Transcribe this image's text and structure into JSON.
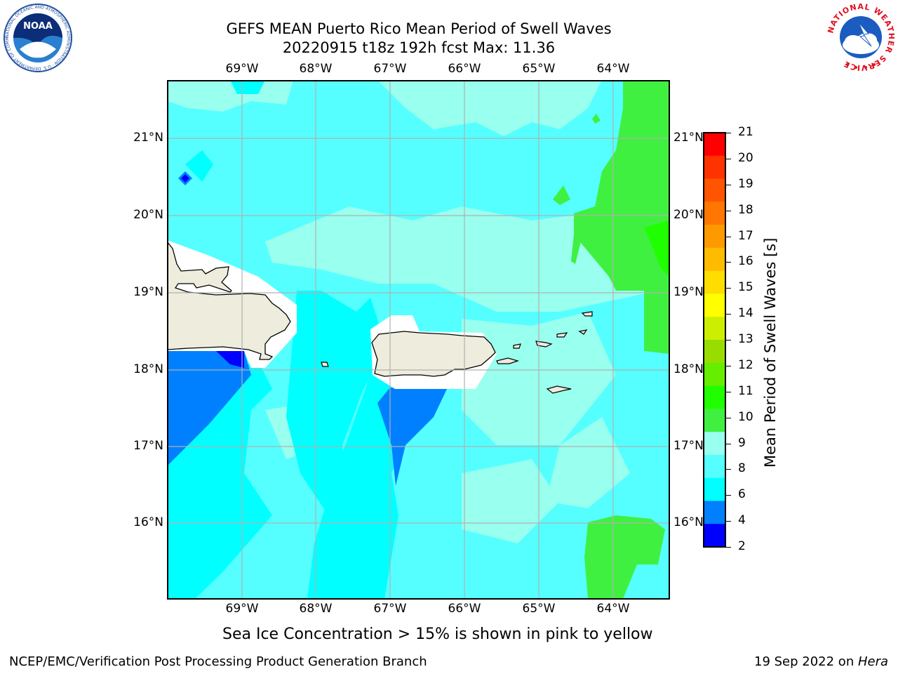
{
  "title": {
    "line1": "GEFS MEAN Puerto Rico Mean Period of Swell Waves",
    "line2": "20220915 t18z 192h fcst   Max: 11.36"
  },
  "map": {
    "lon_labels": [
      "69°W",
      "68°W",
      "67°W",
      "66°W",
      "65°W",
      "64°W"
    ],
    "lat_labels": [
      "21°N",
      "20°N",
      "19°N",
      "18°N",
      "17°N",
      "16°N"
    ],
    "colors": {
      "land": "#eeecdc",
      "shadow": "#ffffff",
      "c2": "#0000ff",
      "c4": "#0080ff",
      "c6": "#00ffff",
      "c8": "#55ffff",
      "c9": "#99ffee",
      "c10": "#40f040",
      "c11": "#20ff00",
      "grid": "#b0b0b0"
    }
  },
  "colorbar": {
    "title": "Mean Period of Swell Waves [s]",
    "levels": [
      "21",
      "20",
      "19",
      "18",
      "17",
      "16",
      "15",
      "14",
      "13",
      "12",
      "11",
      "10",
      "9",
      "8",
      "6",
      "4",
      "2"
    ],
    "colors": [
      "#ff0000",
      "#ff3300",
      "#ff5500",
      "#ff7700",
      "#ff9900",
      "#ffbb00",
      "#ffdd00",
      "#ffff00",
      "#ccee00",
      "#99dd00",
      "#66ee00",
      "#20ff00",
      "#40f040",
      "#99ffee",
      "#55ffff",
      "#00ffff",
      "#0080ff",
      "#0000ff"
    ]
  },
  "caption": "Sea Ice Concentration > 15% is shown in pink to yellow",
  "footer": {
    "left": "NCEP/EMC/Verification Post Processing Product Generation Branch",
    "date": "19 Sep 2022 on ",
    "host": "Hera"
  },
  "logos": {
    "noaa_text": "NOAA",
    "noaa_ring": "NATIONAL OCEANIC AND ATMOSPHERIC ADMINISTRATION · U.S. DEPARTMENT OF COMMERCE ·",
    "nws_ring": "NATIONAL WEATHER SERVICE"
  }
}
